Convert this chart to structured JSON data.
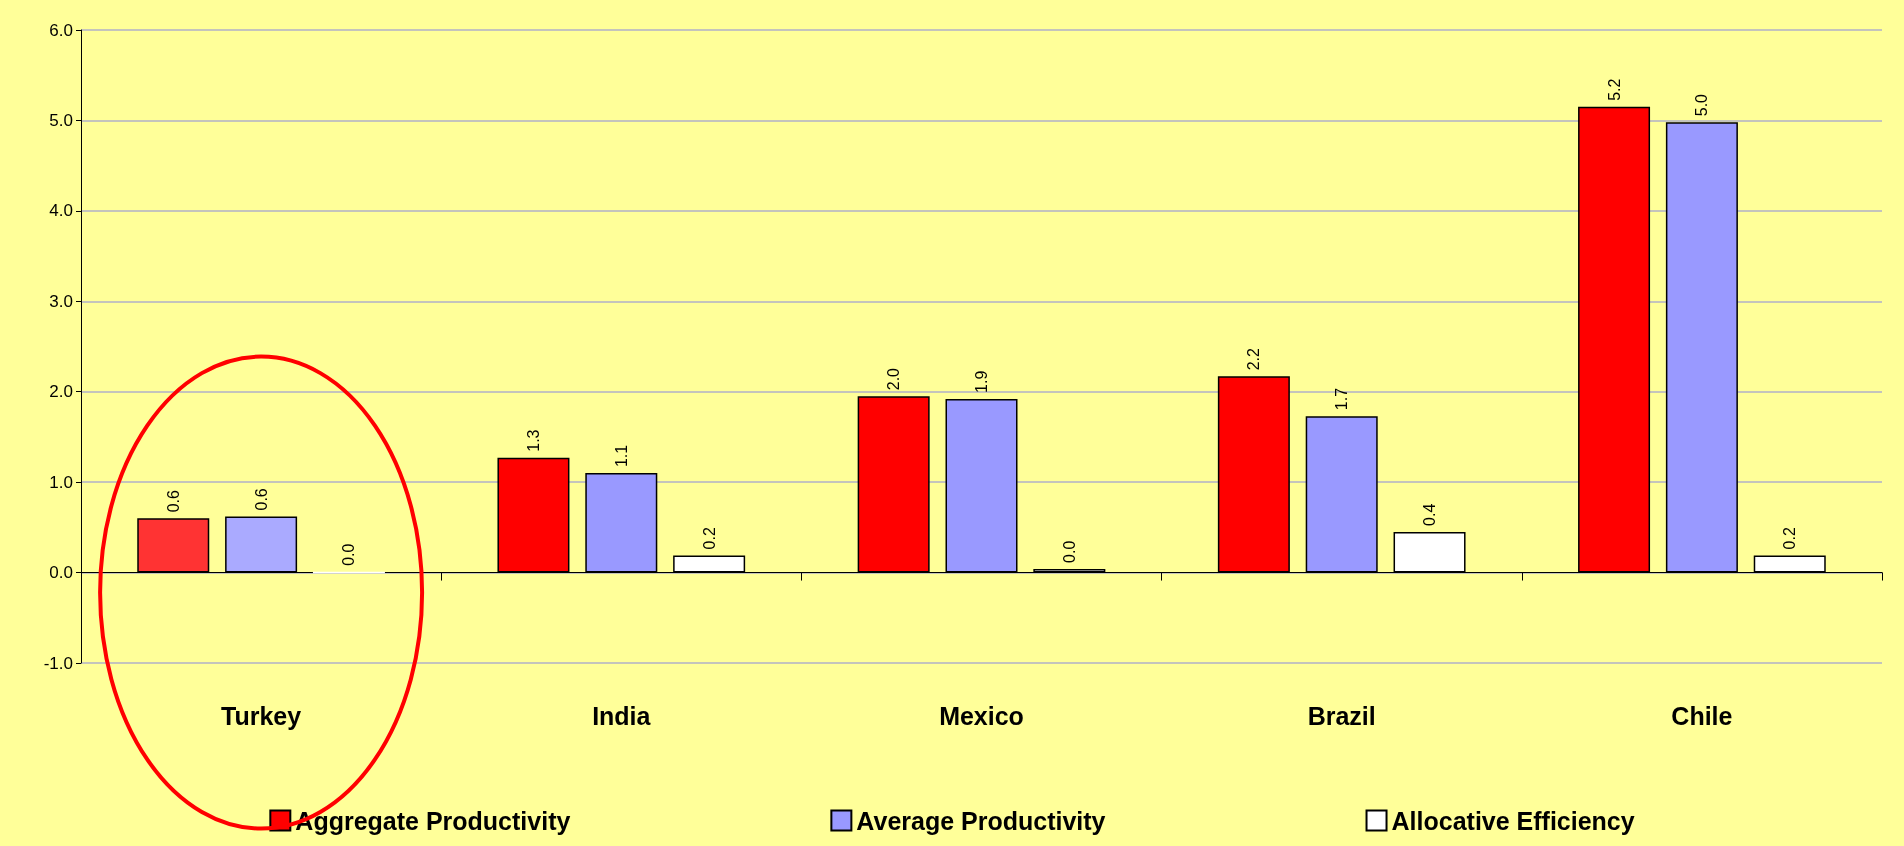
{
  "chart_data": {
    "type": "bar",
    "categories": [
      "Turkey",
      "India",
      "Mexico",
      "Brazil",
      "Chile"
    ],
    "series": [
      {
        "name": "Aggregate Productivity",
        "color": "#ff0000",
        "colors": [
          "#ff3333",
          "#ff0000",
          "#ff0000",
          "#ff0000",
          "#ff0000"
        ],
        "values": [
          0.6,
          1.27,
          1.95,
          2.17,
          5.15
        ],
        "value_labels": [
          "0.6",
          "1.3",
          "2.0",
          "2.2",
          "5.2"
        ]
      },
      {
        "name": "Average Productivity",
        "color": "#9999ff",
        "colors": [
          "#aaaaff",
          "#9999ff",
          "#9999ff",
          "#9999ff",
          "#9999ff"
        ],
        "values": [
          0.62,
          1.1,
          1.92,
          1.73,
          4.98
        ],
        "value_labels": [
          "0.6",
          "1.1",
          "1.9",
          "1.7",
          "5.0"
        ]
      },
      {
        "name": "Allocative Efficiency",
        "color": "#ffffff",
        "values": [
          0.0,
          0.19,
          0.04,
          0.45,
          0.19
        ],
        "value_labels": [
          "0.0",
          "0.2",
          "0.0",
          "0.4",
          "0.2"
        ]
      }
    ],
    "ylim": [
      -1,
      6
    ],
    "yticks": [
      {
        "value": -1,
        "label": "-1.0"
      },
      {
        "value": 0,
        "label": "0.0"
      },
      {
        "value": 1,
        "label": "1.0"
      },
      {
        "value": 2,
        "label": "2.0"
      },
      {
        "value": 3,
        "label": "3.0"
      },
      {
        "value": 4,
        "label": "4.0"
      },
      {
        "value": 5,
        "label": "5.0"
      },
      {
        "value": 6,
        "label": "6.0"
      }
    ],
    "grid": "y",
    "legend": "bottom"
  }
}
